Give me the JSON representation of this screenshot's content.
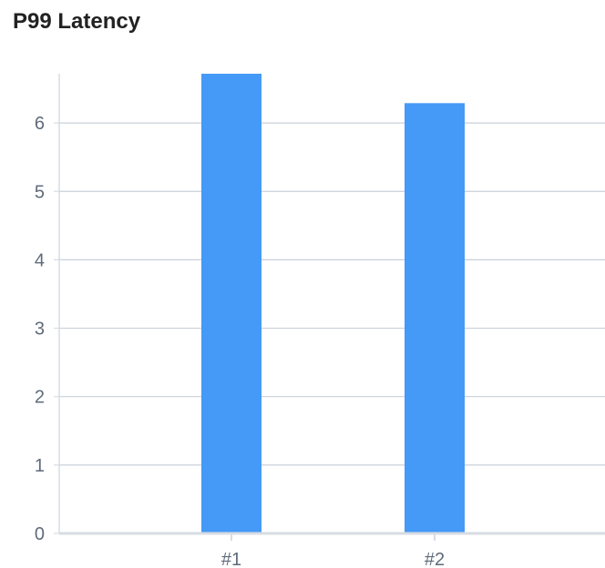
{
  "chart_data": {
    "type": "bar",
    "title": "P99 Latency",
    "categories": [
      "#1",
      "#2"
    ],
    "values": [
      6.72,
      6.29
    ],
    "ylim": [
      0,
      6.72
    ],
    "yticks": [
      0,
      1,
      2,
      3,
      4,
      5,
      6
    ],
    "grid": true,
    "legend": "none",
    "xlabel": "",
    "ylabel": "",
    "colors": {
      "bar": "#4599f7",
      "grid": "#c9d0da",
      "axis": "#d7dce3",
      "tick_label": "#5f6b7a"
    }
  }
}
